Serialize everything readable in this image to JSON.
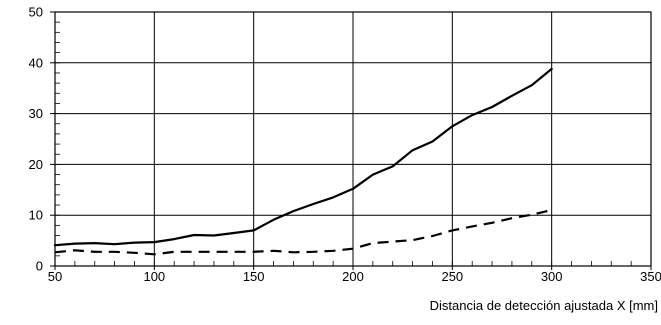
{
  "chart_data": {
    "type": "line",
    "title": "",
    "xlabel": "Distancia de detección ajustada X [mm]",
    "ylabel": "",
    "xlim": [
      50,
      350
    ],
    "ylim": [
      0,
      50
    ],
    "x_ticks": [
      50,
      100,
      150,
      200,
      250,
      300,
      350
    ],
    "y_ticks": [
      0,
      10,
      20,
      30,
      40,
      50
    ],
    "grid": true,
    "series": [
      {
        "style": "solid",
        "color": "#000000",
        "x": [
          50,
          60,
          70,
          80,
          90,
          100,
          110,
          120,
          130,
          140,
          150,
          160,
          170,
          180,
          190,
          200,
          210,
          220,
          230,
          240,
          250,
          260,
          270,
          280,
          290,
          300
        ],
        "y": [
          4.1,
          4.4,
          4.5,
          4.3,
          4.6,
          4.7,
          5.3,
          6.1,
          6.0,
          6.5,
          7.0,
          9.1,
          10.8,
          12.2,
          13.5,
          15.2,
          18.0,
          19.6,
          22.8,
          24.5,
          27.5,
          29.7,
          31.3,
          33.5,
          35.6,
          38.8
        ]
      },
      {
        "style": "dashed",
        "color": "#000000",
        "x": [
          50,
          60,
          70,
          80,
          90,
          100,
          110,
          120,
          130,
          140,
          150,
          160,
          170,
          180,
          190,
          200,
          210,
          220,
          230,
          240,
          250,
          260,
          270,
          280,
          290,
          300
        ],
        "y": [
          2.7,
          3.1,
          2.8,
          2.8,
          2.6,
          2.3,
          2.8,
          2.8,
          2.8,
          2.8,
          2.8,
          3.0,
          2.7,
          2.8,
          3.0,
          3.4,
          4.5,
          4.8,
          5.1,
          5.9,
          7.0,
          7.8,
          8.5,
          9.4,
          10.1,
          11.0
        ]
      }
    ]
  }
}
